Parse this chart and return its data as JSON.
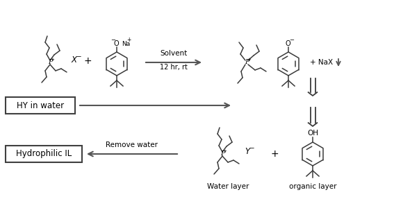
{
  "background": "#ffffff",
  "line_color": "#3a3a3a",
  "text_color": "#000000",
  "figsize": [
    5.67,
    3.1
  ],
  "dpi": 100,
  "arrow_color": "#555555",
  "labels": {
    "solvent": "Solvent",
    "time": "12 hr, rt",
    "nax": "+ NaX",
    "hy_water": "HY in water",
    "remove_water": "Remove water",
    "hydrophilic": "Hydrophilic IL",
    "water_layer": "Water layer",
    "organic_layer": "organic layer"
  }
}
